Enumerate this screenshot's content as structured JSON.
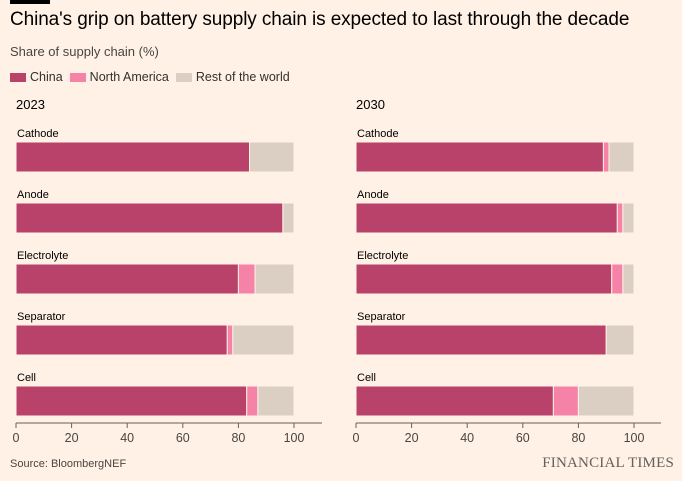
{
  "title": "China's grip on battery supply chain is expected to last through the decade",
  "subtitle": "Share of supply chain (%)",
  "legend": [
    {
      "label": "China",
      "color": "#b8426a"
    },
    {
      "label": "North America",
      "color": "#f583a8"
    },
    {
      "label": "Rest of the world",
      "color": "#dbcfc4"
    }
  ],
  "source": "Source: BloombergNEF",
  "brand": "FINANCIAL TIMES",
  "chart_data": [
    {
      "type": "bar",
      "stacked": true,
      "orientation": "horizontal",
      "title": "2023",
      "categories": [
        "Cathode",
        "Anode",
        "Electrolyte",
        "Separator",
        "Cell"
      ],
      "series": [
        {
          "name": "China",
          "values": [
            84,
            96,
            80,
            76,
            83
          ]
        },
        {
          "name": "North America",
          "values": [
            0,
            0,
            6,
            2,
            4
          ]
        },
        {
          "name": "Rest of the world",
          "values": [
            16,
            4,
            14,
            22,
            13
          ]
        }
      ],
      "xlim": [
        0,
        110
      ],
      "xticks": [
        0,
        20,
        40,
        60,
        80,
        100
      ]
    },
    {
      "type": "bar",
      "stacked": true,
      "orientation": "horizontal",
      "title": "2030",
      "categories": [
        "Cathode",
        "Anode",
        "Electrolyte",
        "Separator",
        "Cell"
      ],
      "series": [
        {
          "name": "China",
          "values": [
            89,
            94,
            92,
            90,
            71
          ]
        },
        {
          "name": "North America",
          "values": [
            2,
            2,
            4,
            0,
            9
          ]
        },
        {
          "name": "Rest of the world",
          "values": [
            9,
            4,
            4,
            10,
            20
          ]
        }
      ],
      "xlim": [
        0,
        110
      ],
      "xticks": [
        0,
        20,
        40,
        60,
        80,
        100
      ]
    }
  ]
}
